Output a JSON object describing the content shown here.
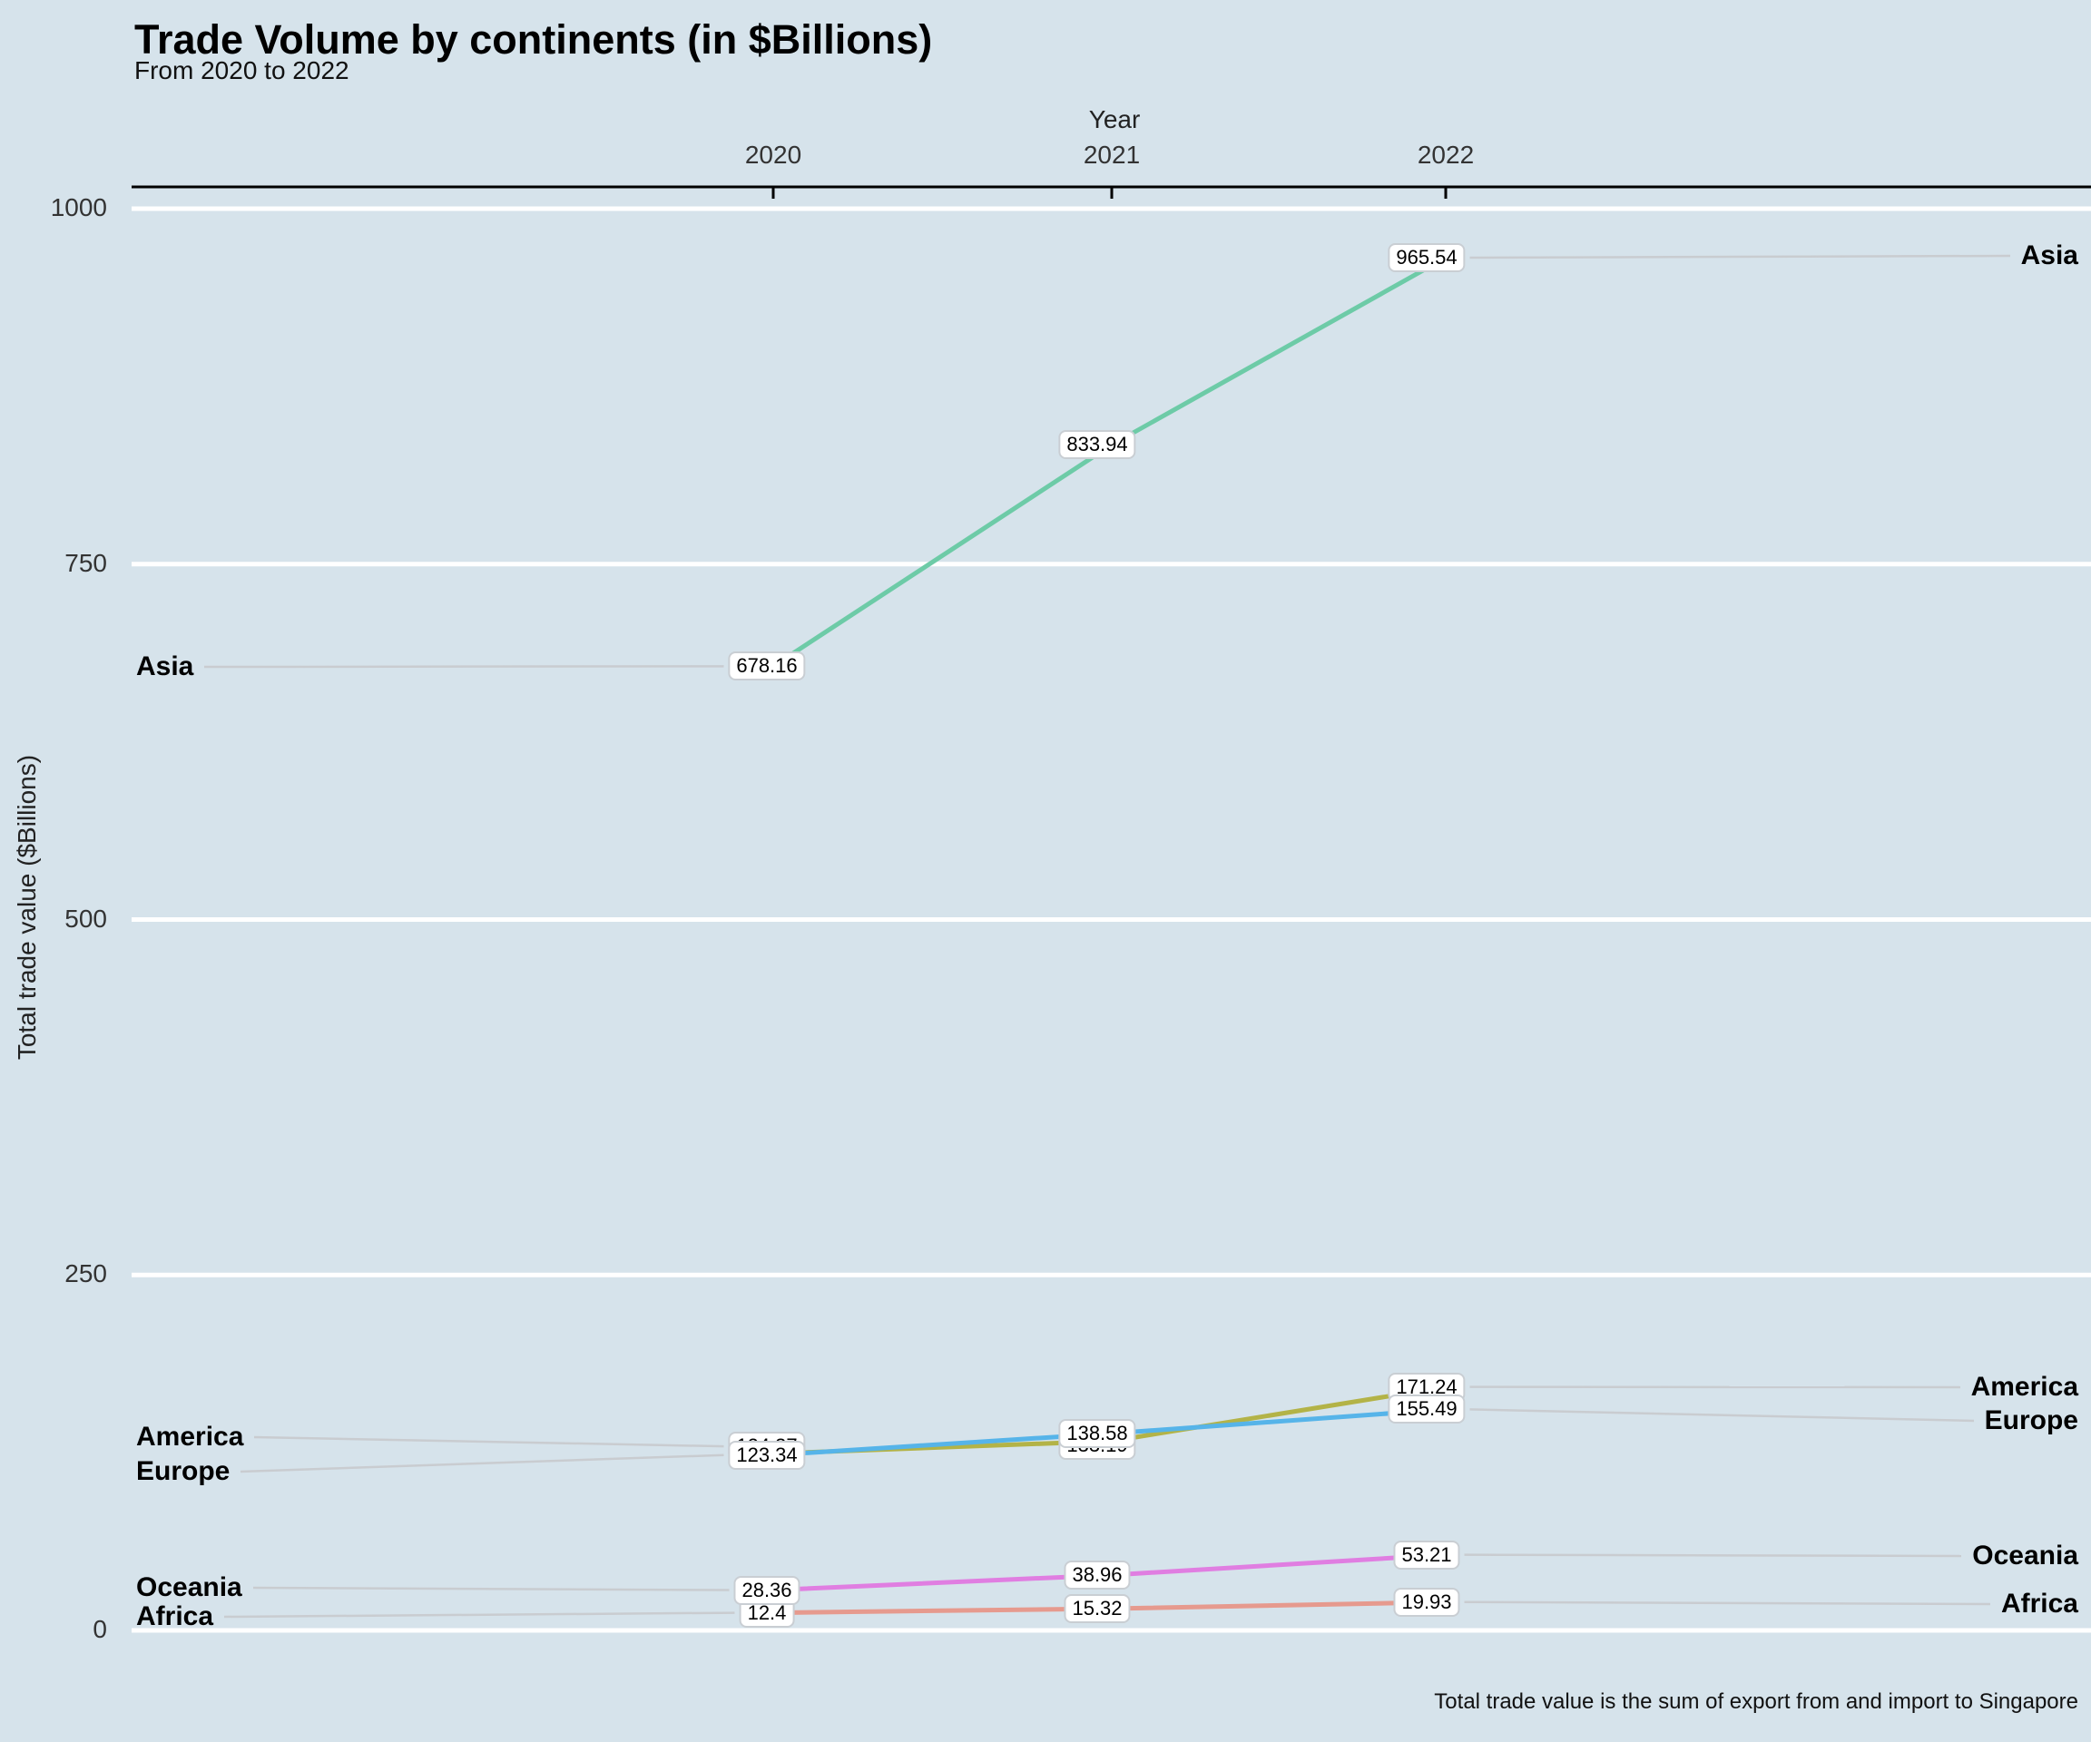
{
  "title": "Trade Volume by continents (in $Billions)",
  "subtitle": "From 2020 to 2022",
  "caption": "Total trade value is the sum of export from and import to Singapore",
  "x_axis": {
    "title": "Year",
    "ticks": [
      "2020",
      "2021",
      "2022"
    ]
  },
  "y_axis": {
    "title": "Total trade value ($Billions)",
    "ticks": [
      "0",
      "250",
      "500",
      "750",
      "1000"
    ]
  },
  "colors": {
    "background": "#d6e3eb",
    "gridline": "#ffffff",
    "axis_line": "#000000",
    "leader_line": "#c9ccd0",
    "label_box_background": "#ffffff",
    "label_box_border": "#c9ced3"
  },
  "chart_data": {
    "type": "line",
    "x": [
      2020,
      2021,
      2022
    ],
    "xlabel": "Year",
    "ylabel": "Total trade value ($Billions)",
    "ylim": [
      0,
      1000
    ],
    "grid": "horizontal-major-white",
    "legend": "direct-labels-left-and-right",
    "series": [
      {
        "name": "Africa",
        "color": "#e69a8e",
        "values": [
          12.4,
          15.32,
          19.93
        ],
        "labels": [
          "12.4",
          "15.32",
          "19.93"
        ]
      },
      {
        "name": "America",
        "color": "#b3b347",
        "values": [
          124.37,
          133.19,
          171.24
        ],
        "labels": [
          "124.37",
          "133.19",
          "171.24"
        ]
      },
      {
        "name": "Asia",
        "color": "#6dcba7",
        "values": [
          678.16,
          833.94,
          965.54
        ],
        "labels": [
          "678.16",
          "833.94",
          "965.54"
        ]
      },
      {
        "name": "Europe",
        "color": "#56b4e9",
        "values": [
          123.34,
          138.58,
          155.49
        ],
        "labels": [
          "123.34",
          "138.58",
          "155.49"
        ]
      },
      {
        "name": "Oceania",
        "color": "#e07ee1",
        "values": [
          28.36,
          38.96,
          53.21
        ],
        "labels": [
          "28.36",
          "38.96",
          "53.21"
        ]
      }
    ]
  }
}
